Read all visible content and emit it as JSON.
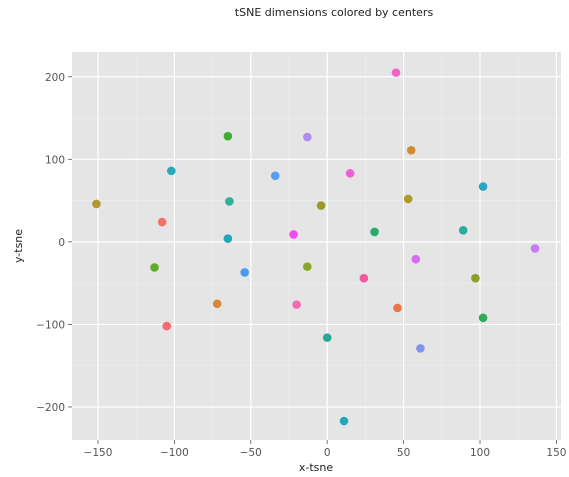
{
  "chart_data": {
    "type": "scatter",
    "title": "tSNE dimensions colored by centers",
    "xlabel": "x-tsne",
    "ylabel": "y-tsne",
    "xlim": [
      -167,
      153
    ],
    "ylim": [
      -240,
      230
    ],
    "x_ticks": [
      -150,
      -100,
      -50,
      0,
      50,
      100,
      150
    ],
    "y_ticks": [
      -200,
      -100,
      0,
      100,
      200
    ],
    "x_tick_labels": [
      "−150",
      "−100",
      "−50",
      "0",
      "50",
      "100",
      "150"
    ],
    "y_tick_labels": [
      "−200",
      "−100",
      "0",
      "100",
      "200"
    ],
    "grid": true,
    "legend": "none",
    "colors": {
      "panel_background": "#e5e5e5",
      "major_grid": "#ffffff",
      "minor_grid": "#efefef"
    },
    "points": [
      {
        "x": 45,
        "y": 205,
        "color": "#f564c9"
      },
      {
        "x": -65,
        "y": 128,
        "color": "#3eae2f"
      },
      {
        "x": -13,
        "y": 127,
        "color": "#b08cf0"
      },
      {
        "x": 55,
        "y": 111,
        "color": "#d58a2e"
      },
      {
        "x": -102,
        "y": 86,
        "color": "#27a9b8"
      },
      {
        "x": -34,
        "y": 80,
        "color": "#5c9cec"
      },
      {
        "x": 15,
        "y": 83,
        "color": "#ee60d8"
      },
      {
        "x": 102,
        "y": 67,
        "color": "#2ba4c2"
      },
      {
        "x": -151,
        "y": 46,
        "color": "#b5952c"
      },
      {
        "x": -64,
        "y": 49,
        "color": "#2fb09b"
      },
      {
        "x": -4,
        "y": 44,
        "color": "#9a9a2a"
      },
      {
        "x": 53,
        "y": 52,
        "color": "#ad9b28"
      },
      {
        "x": -108,
        "y": 24,
        "color": "#f26f6a"
      },
      {
        "x": -22,
        "y": 9,
        "color": "#f04df0"
      },
      {
        "x": 31,
        "y": 12,
        "color": "#26ab6f"
      },
      {
        "x": 89,
        "y": 14,
        "color": "#2bac9c"
      },
      {
        "x": -65,
        "y": 4,
        "color": "#1ea8b8"
      },
      {
        "x": 136,
        "y": -8,
        "color": "#c77cf6"
      },
      {
        "x": -113,
        "y": -31,
        "color": "#5fae2b"
      },
      {
        "x": -13,
        "y": -30,
        "color": "#8aa628"
      },
      {
        "x": 58,
        "y": -21,
        "color": "#d56ef0"
      },
      {
        "x": -54,
        "y": -37,
        "color": "#4c98e9"
      },
      {
        "x": 24,
        "y": -44,
        "color": "#f25a9f"
      },
      {
        "x": 97,
        "y": -44,
        "color": "#8f9f26"
      },
      {
        "x": -72,
        "y": -75,
        "color": "#d6893b"
      },
      {
        "x": -20,
        "y": -76,
        "color": "#f569b5"
      },
      {
        "x": 46,
        "y": -80,
        "color": "#e8784b"
      },
      {
        "x": -105,
        "y": -102,
        "color": "#f56a72"
      },
      {
        "x": 102,
        "y": -92,
        "color": "#2eab58"
      },
      {
        "x": 0,
        "y": -116,
        "color": "#22ab97"
      },
      {
        "x": 61,
        "y": -129,
        "color": "#7d93ee"
      },
      {
        "x": 11,
        "y": -217,
        "color": "#1fa7ba"
      }
    ]
  }
}
